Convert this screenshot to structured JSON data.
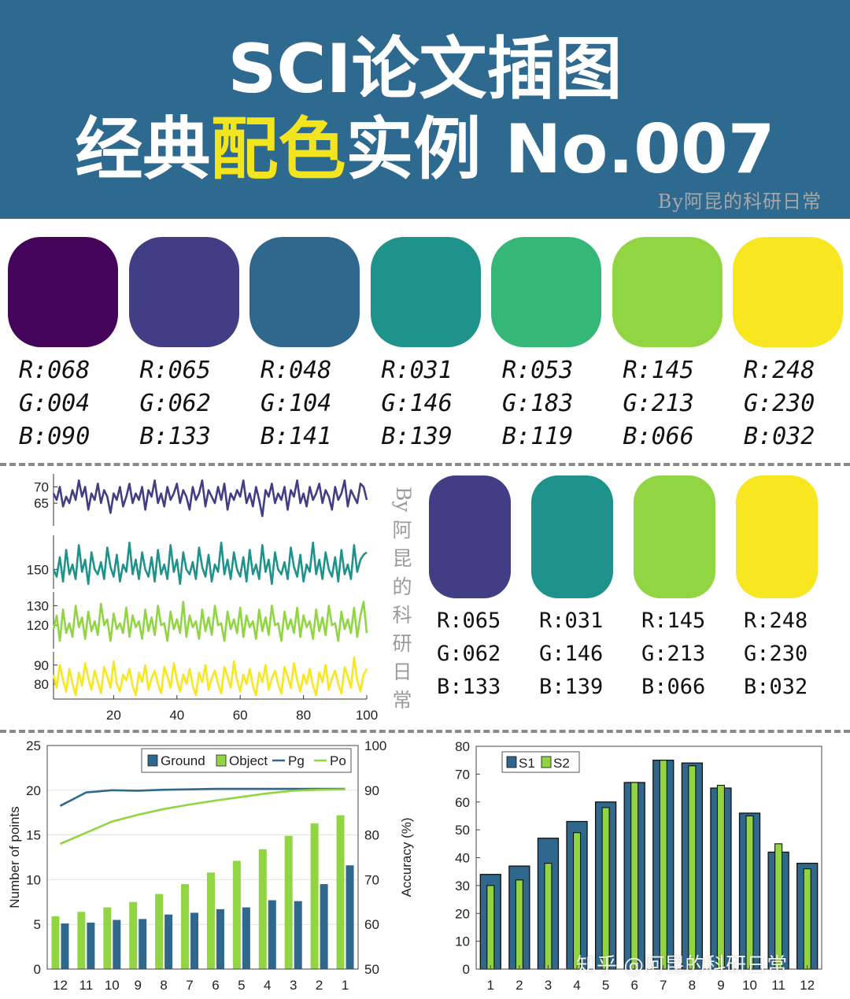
{
  "header": {
    "title_line1": "SCI论文插图",
    "title_line2_a": "经典",
    "title_line2_hl": "配色",
    "title_line2_b": "实例 No.007",
    "signature": "By阿昆的科研日常",
    "bg_color": "#2e6990",
    "highlight_color": "#f2e41e"
  },
  "palette7": [
    {
      "hex": "#44045a",
      "r": "R:068",
      "g": "G:004",
      "b": "B:090"
    },
    {
      "hex": "#413e85",
      "r": "R:065",
      "g": "G:062",
      "b": "B:133"
    },
    {
      "hex": "#30688d",
      "r": "R:048",
      "g": "G:104",
      "b": "B:141"
    },
    {
      "hex": "#1f928b",
      "r": "R:031",
      "g": "G:146",
      "b": "B:139"
    },
    {
      "hex": "#35b777",
      "r": "R:053",
      "g": "G:183",
      "b": "B:119"
    },
    {
      "hex": "#91d542",
      "r": "R:145",
      "g": "G:213",
      "b": "B:066"
    },
    {
      "hex": "#f8e620",
      "r": "R:248",
      "g": "G:230",
      "b": "B:032"
    }
  ],
  "palette4": [
    {
      "hex": "#413e85",
      "r": "R:065",
      "g": "G:062",
      "b": "B:133"
    },
    {
      "hex": "#1f928b",
      "r": "R:031",
      "g": "G:146",
      "b": "B:139"
    },
    {
      "hex": "#91d542",
      "r": "R:145",
      "g": "G:213",
      "b": "B:066"
    },
    {
      "hex": "#f8e620",
      "r": "R:248",
      "g": "G:230",
      "b": "B:032"
    }
  ],
  "signature_vertical": "By阿昆的科研日常",
  "watermark": "知乎 @阿昆的科研日常",
  "chart_data": [
    {
      "type": "line",
      "panels": [
        {
          "color": "#413e85",
          "yticks": [
            65,
            70
          ],
          "ylim": [
            58,
            74
          ],
          "values": [
            68,
            66,
            70,
            64,
            67,
            65,
            69,
            66,
            72,
            67,
            70,
            63,
            68,
            66,
            71,
            65,
            69,
            67,
            62,
            68,
            66,
            70,
            64,
            67,
            71,
            65,
            68,
            66,
            70,
            63,
            69,
            67,
            72,
            65,
            68,
            64,
            70,
            66,
            68,
            71,
            65,
            69,
            67,
            63,
            70,
            66,
            68,
            72,
            64,
            69,
            67,
            65,
            70,
            66,
            71,
            63,
            68,
            66,
            69,
            67,
            72,
            65,
            68,
            64,
            70,
            66,
            61,
            69,
            67,
            71,
            65,
            68,
            66,
            70,
            63,
            69,
            67,
            72,
            65,
            68,
            64,
            70,
            66,
            68,
            71,
            65,
            69,
            67,
            63,
            70,
            66,
            68,
            72,
            64,
            69,
            67,
            65,
            71,
            70,
            66
          ]
        },
        {
          "color": "#1f928b",
          "yticks": [
            150
          ],
          "ylim": [
            142,
            164
          ],
          "values": [
            150,
            147,
            155,
            145,
            158,
            148,
            152,
            146,
            160,
            149,
            154,
            144,
            157,
            150,
            148,
            153,
            146,
            159,
            151,
            147,
            156,
            145,
            152,
            149,
            161,
            148,
            154,
            146,
            157,
            150,
            147,
            155,
            145,
            158,
            148,
            152,
            146,
            160,
            149,
            154,
            144,
            157,
            150,
            148,
            153,
            146,
            159,
            151,
            147,
            156,
            145,
            152,
            149,
            161,
            148,
            154,
            146,
            157,
            150,
            147,
            155,
            145,
            158,
            148,
            152,
            146,
            160,
            149,
            154,
            144,
            157,
            150,
            148,
            153,
            146,
            159,
            151,
            147,
            156,
            145,
            152,
            149,
            161,
            148,
            154,
            146,
            157,
            150,
            147,
            155,
            145,
            158,
            148,
            152,
            146,
            160,
            149,
            154,
            156,
            157
          ]
        },
        {
          "color": "#91d542",
          "yticks": [
            120,
            130
          ],
          "ylim": [
            108,
            137
          ],
          "values": [
            118,
            125,
            112,
            128,
            116,
            121,
            114,
            130,
            119,
            124,
            113,
            127,
            117,
            122,
            115,
            131,
            120,
            123,
            112,
            126,
            118,
            121,
            116,
            129,
            114,
            125,
            119,
            122,
            113,
            128,
            117,
            124,
            115,
            130,
            120,
            121,
            112,
            127,
            118,
            123,
            116,
            132,
            114,
            125,
            119,
            122,
            113,
            128,
            117,
            124,
            115,
            130,
            120,
            121,
            112,
            127,
            118,
            123,
            116,
            129,
            114,
            125,
            119,
            122,
            113,
            128,
            117,
            124,
            115,
            130,
            120,
            121,
            112,
            127,
            118,
            123,
            116,
            129,
            114,
            125,
            119,
            122,
            113,
            128,
            117,
            124,
            115,
            130,
            120,
            121,
            112,
            127,
            118,
            123,
            116,
            129,
            114,
            125,
            132,
            116
          ]
        },
        {
          "color": "#f8e620",
          "yticks": [
            80,
            90
          ],
          "ylim": [
            72,
            97
          ],
          "values": [
            85,
            78,
            90,
            82,
            76,
            88,
            80,
            74,
            86,
            79,
            91,
            83,
            77,
            87,
            81,
            75,
            89,
            84,
            78,
            92,
            80,
            76,
            85,
            82,
            88,
            79,
            74,
            86,
            81,
            90,
            77,
            83,
            87,
            80,
            75,
            89,
            84,
            78,
            91,
            82,
            76,
            85,
            80,
            88,
            79,
            74,
            86,
            81,
            90,
            77,
            83,
            87,
            80,
            75,
            89,
            84,
            78,
            92,
            82,
            76,
            85,
            80,
            88,
            79,
            74,
            86,
            81,
            90,
            77,
            83,
            87,
            80,
            75,
            89,
            84,
            78,
            91,
            82,
            76,
            85,
            80,
            88,
            79,
            74,
            86,
            81,
            90,
            77,
            83,
            87,
            80,
            75,
            89,
            84,
            78,
            94,
            82,
            76,
            85,
            88
          ]
        }
      ],
      "xticks": [
        20,
        40,
        60,
        80,
        100
      ],
      "xlim": [
        1,
        100
      ]
    },
    {
      "type": "bar",
      "categories": [
        "12",
        "11",
        "10",
        "9",
        "8",
        "7",
        "6",
        "5",
        "4",
        "3",
        "2",
        "1"
      ],
      "series": [
        {
          "name": "Ground",
          "color": "#30688d",
          "axis": "left",
          "values": [
            5.1,
            5.2,
            5.5,
            5.6,
            6.1,
            6.3,
            6.7,
            6.9,
            7.7,
            7.6,
            9.5,
            11.6
          ]
        },
        {
          "name": "Object",
          "color": "#91d542",
          "axis": "left",
          "values": [
            5.9,
            6.4,
            6.9,
            7.5,
            8.4,
            9.5,
            10.8,
            12.1,
            13.4,
            14.9,
            16.3,
            17.2
          ]
        },
        {
          "name": "Pg",
          "color": "#30688d",
          "axis": "right",
          "type": "line",
          "values": [
            86.5,
            89.5,
            90.0,
            89.9,
            90.1,
            90.2,
            90.3,
            90.3,
            90.3,
            90.3,
            90.3,
            90.3
          ]
        },
        {
          "name": "Po",
          "color": "#91d542",
          "axis": "right",
          "type": "line",
          "values": [
            78.0,
            80.5,
            83.0,
            84.5,
            85.8,
            86.8,
            87.7,
            88.5,
            89.3,
            89.9,
            90.1,
            90.2
          ]
        }
      ],
      "ylabel": "Number of points",
      "ylabel_right": "Accuracy (%)",
      "ylim": [
        0,
        25
      ],
      "ylim_right": [
        50,
        100
      ],
      "yticks": [
        0,
        5,
        10,
        15,
        20,
        25
      ],
      "yticks_right": [
        50,
        60,
        70,
        80,
        90,
        100
      ],
      "legend": "top-right",
      "grid": true
    },
    {
      "type": "bar",
      "categories": [
        "1",
        "2",
        "3",
        "4",
        "5",
        "6",
        "7",
        "8",
        "9",
        "10",
        "11",
        "12"
      ],
      "series": [
        {
          "name": "S1",
          "color": "#30688d",
          "values": [
            34,
            37,
            47,
            53,
            60,
            67,
            75,
            74,
            65,
            56,
            42,
            38
          ]
        },
        {
          "name": "S2",
          "color": "#91d542",
          "values": [
            30,
            32,
            38,
            49,
            58,
            67,
            75,
            73,
            66,
            55,
            45,
            36
          ]
        }
      ],
      "ylim": [
        0,
        80
      ],
      "yticks": [
        0,
        10,
        20,
        30,
        40,
        50,
        60,
        70,
        80
      ],
      "legend": "top-left",
      "grid": false
    }
  ]
}
